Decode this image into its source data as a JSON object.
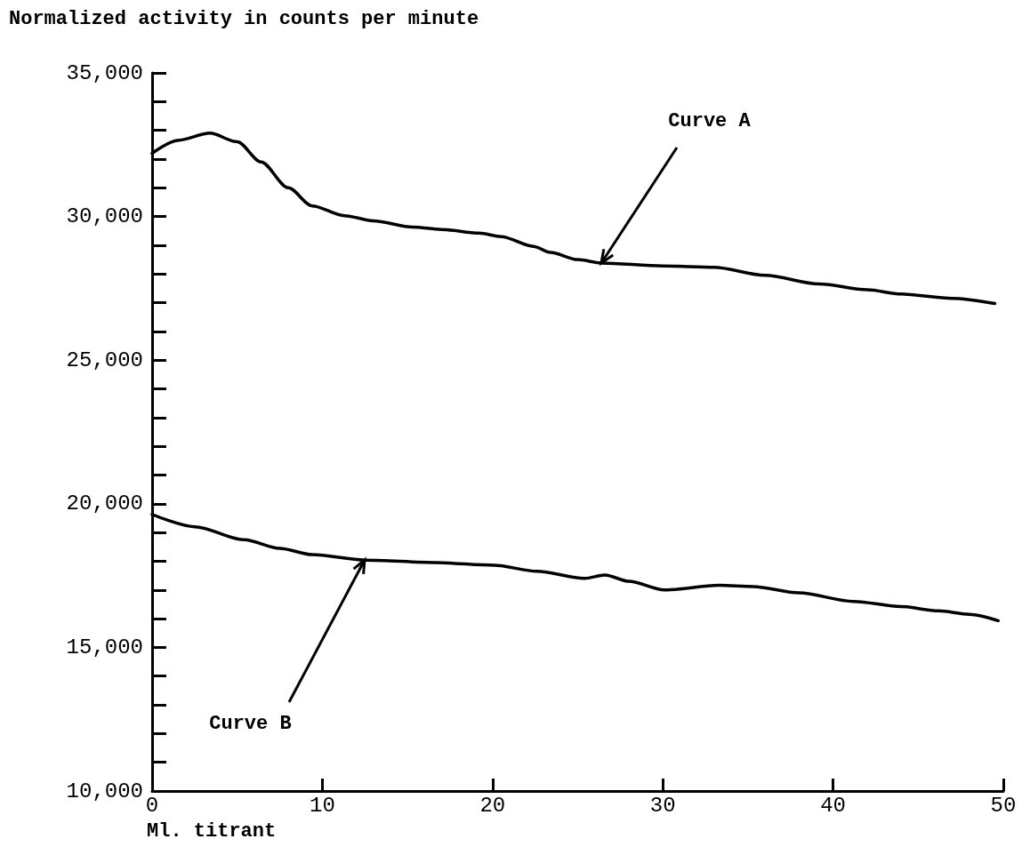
{
  "chart_data": {
    "type": "line",
    "ylabel": "Normalized activity in counts per minute",
    "xlabel": "Ml. titrant",
    "xlim": [
      0,
      50
    ],
    "xticks": [
      0,
      10,
      20,
      30,
      40,
      50
    ],
    "ylim": [
      10000,
      35000
    ],
    "yticks": [
      {
        "value": 10000,
        "label": "10,000"
      },
      {
        "value": 11000,
        "label": null
      },
      {
        "value": 12000,
        "label": null
      },
      {
        "value": 13000,
        "label": null
      },
      {
        "value": 14000,
        "label": null
      },
      {
        "value": 15000,
        "label": "15,000"
      },
      {
        "value": 16000,
        "label": null
      },
      {
        "value": 17000,
        "label": null
      },
      {
        "value": 18000,
        "label": null
      },
      {
        "value": 19000,
        "label": null
      },
      {
        "value": 20000,
        "label": "20,000"
      },
      {
        "value": 21000,
        "label": null
      },
      {
        "value": 22000,
        "label": null
      },
      {
        "value": 23000,
        "label": null
      },
      {
        "value": 24000,
        "label": null
      },
      {
        "value": 25000,
        "label": "25,000"
      },
      {
        "value": 26000,
        "label": null
      },
      {
        "value": 27000,
        "label": null
      },
      {
        "value": 28000,
        "label": null
      },
      {
        "value": 29000,
        "label": null
      },
      {
        "value": 30000,
        "label": "30,000"
      },
      {
        "value": 31000,
        "label": null
      },
      {
        "value": 32000,
        "label": null
      },
      {
        "value": 33000,
        "label": null
      },
      {
        "value": 34000,
        "label": null
      },
      {
        "value": 35000,
        "label": "35,000"
      }
    ],
    "grid": false,
    "marker": "none",
    "line_style": "solid",
    "series": [
      {
        "color": "#000000",
        "x": [
          0,
          1.5,
          3.4,
          5,
          6.4,
          8,
          9.4,
          11.3,
          13,
          15.3,
          17,
          19.2,
          20.5,
          22.4,
          23.4,
          25,
          26.4,
          30,
          33,
          36,
          39.2,
          42,
          44,
          47,
          49.5
        ],
        "values": [
          32200,
          32650,
          32900,
          32600,
          31900,
          31000,
          30370,
          30030,
          29850,
          29630,
          29550,
          29420,
          29300,
          28960,
          28750,
          28500,
          28380,
          28280,
          28230,
          27950,
          27650,
          27450,
          27300,
          27150,
          26970
        ]
      },
      {
        "color": "#000000",
        "x": [
          0,
          2.5,
          5.4,
          7.5,
          9.4,
          12.5,
          16.7,
          20.1,
          22.6,
          25.4,
          26.6,
          28,
          30.1,
          33.3,
          35.3,
          38,
          41.2,
          44,
          46.2,
          48,
          49.7
        ],
        "values": [
          19630,
          19200,
          18750,
          18450,
          18230,
          18040,
          17950,
          17860,
          17650,
          17400,
          17520,
          17300,
          17000,
          17160,
          17120,
          16900,
          16600,
          16420,
          16270,
          16150,
          15930
        ]
      }
    ],
    "annotations": [
      {
        "text": "Curve A",
        "x": 26.4,
        "y": 28380
      },
      {
        "text": "Curve B",
        "x": 12.5,
        "y": 18040
      }
    ]
  }
}
